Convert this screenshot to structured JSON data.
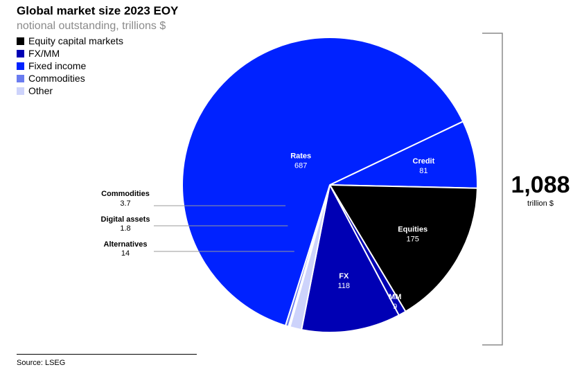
{
  "chart_data": {
    "type": "pie",
    "title": "Global market size 2023 EOY",
    "subtitle": "notional outstanding, trillions $",
    "legend": [
      {
        "label": "Equity capital markets",
        "color": "#000000"
      },
      {
        "label": "FX/MM",
        "color": "#0000b4"
      },
      {
        "label": "Fixed income",
        "color": "#0022ff"
      },
      {
        "label": "Commodities",
        "color": "#6a7cf0"
      },
      {
        "label": "Other",
        "color": "#cdd3fb"
      }
    ],
    "slices": [
      {
        "label": "Credit",
        "value": 81,
        "display": "81",
        "color": "#0022ff",
        "label_placement": "inside"
      },
      {
        "label": "Equities",
        "value": 175,
        "display": "175",
        "color": "#000000",
        "label_placement": "inside"
      },
      {
        "label": "MM",
        "value": 9,
        "display": "9",
        "color": "#0000b4",
        "label_placement": "inside"
      },
      {
        "label": "FX",
        "value": 118,
        "display": "118",
        "color": "#0000b4",
        "label_placement": "inside"
      },
      {
        "label": "Alternatives",
        "value": 14,
        "display": "14",
        "color": "#cdd3fb",
        "label_placement": "outside"
      },
      {
        "label": "Digital assets",
        "value": 1.8,
        "display": "1.8",
        "color": "#cdd3fb",
        "label_placement": "outside"
      },
      {
        "label": "Commodities",
        "value": 3.7,
        "display": "3.7",
        "color": "#6a7cf0",
        "label_placement": "outside"
      },
      {
        "label": "Rates",
        "value": 687,
        "display": "687",
        "color": "#0022ff",
        "label_placement": "inside"
      }
    ],
    "total": "1,088",
    "total_unit": "trillion $"
  },
  "source": "Source: LSEG"
}
